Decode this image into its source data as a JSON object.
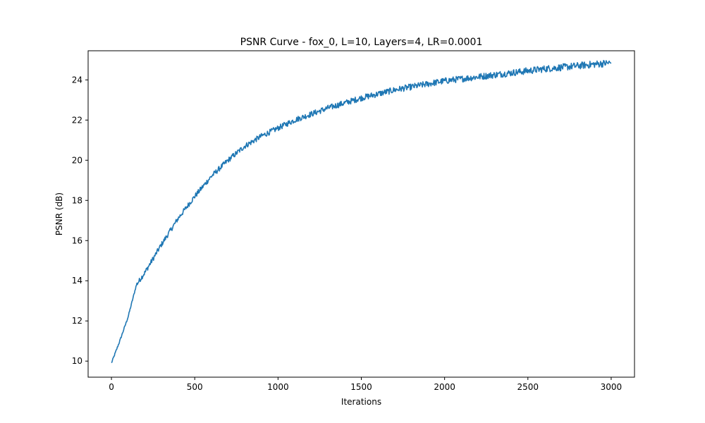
{
  "chart_data": {
    "type": "line",
    "title": "PSNR Curve - fox_0, L=10, Layers=4, LR=0.0001",
    "xlabel": "Iterations",
    "ylabel": "PSNR (dB)",
    "xlim": [
      -140,
      3140
    ],
    "ylim": [
      9.2,
      25.45
    ],
    "xticks": [
      0,
      500,
      1000,
      1500,
      2000,
      2500,
      3000
    ],
    "xtick_labels": [
      "0",
      "500",
      "1000",
      "1500",
      "2000",
      "2500",
      "3000"
    ],
    "yticks": [
      10,
      12,
      14,
      16,
      18,
      20,
      22,
      24
    ],
    "ytick_labels": [
      "10",
      "12",
      "14",
      "16",
      "18",
      "20",
      "22",
      "24"
    ],
    "grid": false,
    "legend": "none",
    "series": [
      {
        "color": "#1f77b4",
        "x": [
          0,
          50,
          100,
          150,
          200,
          250,
          300,
          400,
          500,
          600,
          700,
          800,
          900,
          1000,
          1100,
          1200,
          1300,
          1400,
          1500,
          1600,
          1700,
          1800,
          1900,
          2000,
          2100,
          2200,
          2300,
          2400,
          2500,
          2600,
          2700,
          2800,
          2900,
          3000
        ],
        "y": [
          9.9,
          11.0,
          12.2,
          13.8,
          14.4,
          15.1,
          15.8,
          17.1,
          18.2,
          19.2,
          20.0,
          20.7,
          21.2,
          21.6,
          22.0,
          22.3,
          22.6,
          22.85,
          23.1,
          23.3,
          23.5,
          23.65,
          23.8,
          23.95,
          24.05,
          24.15,
          24.25,
          24.35,
          24.45,
          24.55,
          24.62,
          24.7,
          24.78,
          24.85
        ]
      }
    ]
  }
}
